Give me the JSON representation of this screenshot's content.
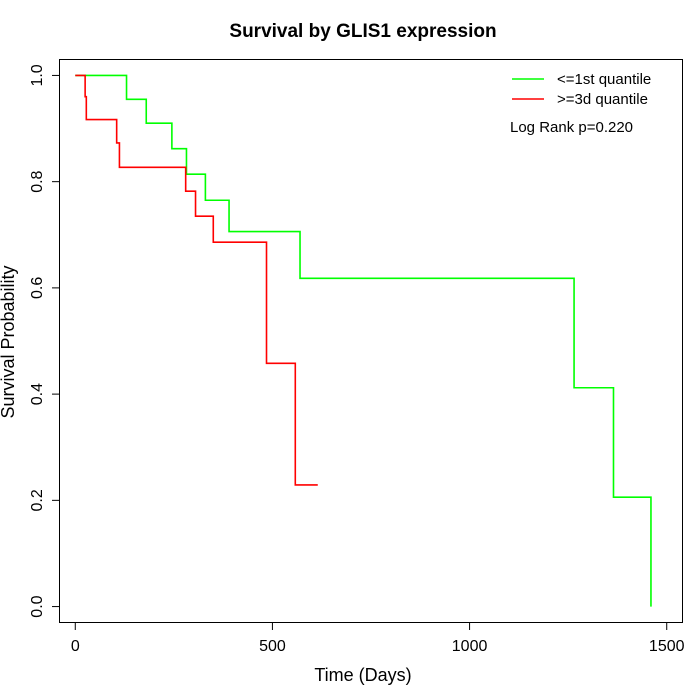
{
  "chart_data": {
    "type": "line",
    "title": "Survival by GLIS1 expression",
    "xlabel": "Time (Days)",
    "ylabel": "Survival Probability",
    "xlim": [
      -40,
      1540
    ],
    "ylim": [
      -0.03,
      1.03
    ],
    "x_ticks": [
      0,
      500,
      1000,
      1500
    ],
    "y_ticks": [
      0.0,
      0.2,
      0.4,
      0.6,
      0.8,
      1.0
    ],
    "x_tick_labels": [
      "0",
      "500",
      "1000",
      "1500"
    ],
    "y_tick_labels": [
      "0.0",
      "0.2",
      "0.4",
      "0.6",
      "0.8",
      "1.0"
    ],
    "grid": false,
    "legend_position": "top-right",
    "annotation": "Log Rank p=0.220",
    "series": [
      {
        "name": "<=1st quantile",
        "color": "#00ff00",
        "step": true,
        "points": [
          [
            0,
            1.0
          ],
          [
            130,
            0.955
          ],
          [
            180,
            0.91
          ],
          [
            245,
            0.862
          ],
          [
            282,
            0.814
          ],
          [
            330,
            0.765
          ],
          [
            390,
            0.706
          ],
          [
            570,
            0.618
          ],
          [
            1265,
            0.412
          ],
          [
            1365,
            0.206
          ],
          [
            1460,
            0.0
          ]
        ]
      },
      {
        "name": ">=3d quantile",
        "color": "#ff0000",
        "step": true,
        "points": [
          [
            0,
            1.0
          ],
          [
            25,
            0.96
          ],
          [
            28,
            0.917
          ],
          [
            105,
            0.873
          ],
          [
            112,
            0.827
          ],
          [
            280,
            0.782
          ],
          [
            305,
            0.735
          ],
          [
            350,
            0.686
          ],
          [
            485,
            0.458
          ],
          [
            558,
            0.229
          ],
          [
            615,
            0.229
          ]
        ]
      }
    ]
  }
}
